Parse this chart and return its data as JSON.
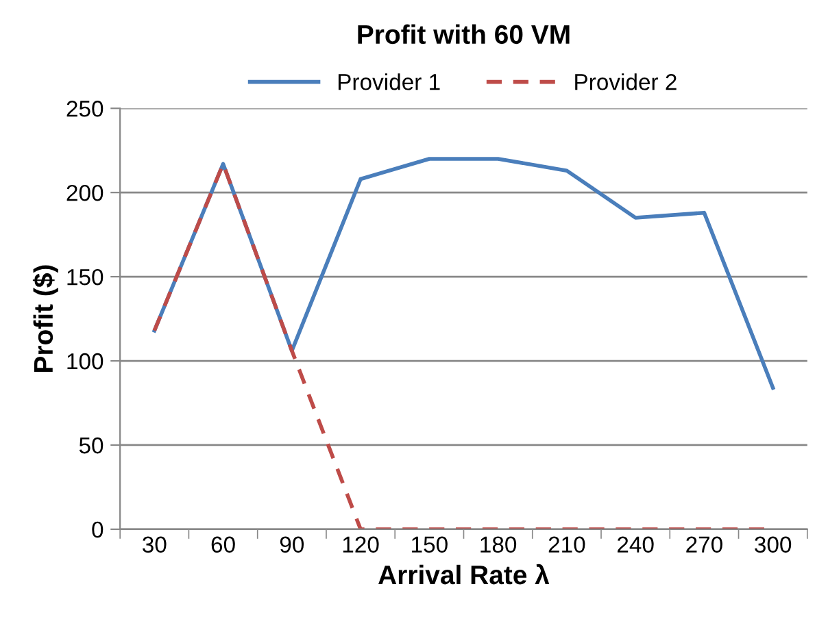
{
  "chart_data": {
    "type": "line",
    "title": "Profit with 60 VM",
    "xlabel": "Arrival Rate λ",
    "ylabel": "Profit ($)",
    "categories": [
      "30",
      "60",
      "90",
      "120",
      "150",
      "180",
      "210",
      "240",
      "270",
      "300"
    ],
    "series": [
      {
        "name": "Provider 1",
        "color": "#4a7ebb",
        "line_style": "solid",
        "values": [
          118,
          217,
          106,
          208,
          220,
          220,
          213,
          185,
          188,
          84
        ]
      },
      {
        "name": "Provider 2",
        "color": "#be4b48",
        "line_style": "dashed",
        "values": [
          118,
          217,
          106,
          0,
          0,
          0,
          0,
          0,
          0,
          0
        ]
      }
    ],
    "ylim": [
      0,
      250
    ],
    "yticks": [
      0,
      50,
      100,
      150,
      200,
      250
    ],
    "grid": "y",
    "legend": "top",
    "marker": "none"
  }
}
